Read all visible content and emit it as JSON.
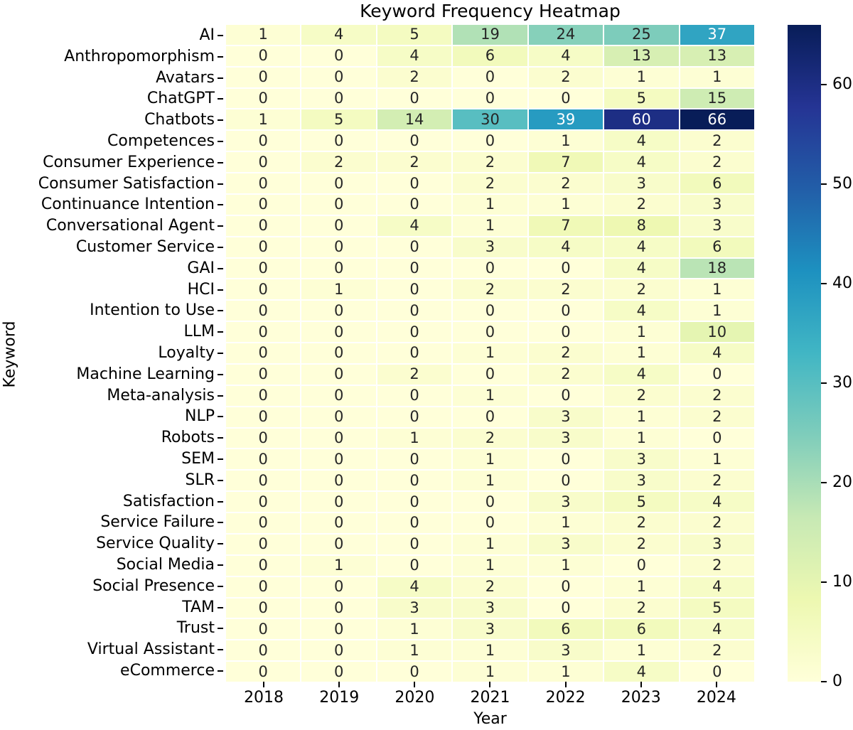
{
  "title": "Keyword Frequency Heatmap",
  "chart_data": {
    "type": "heatmap",
    "title": "Keyword Frequency Heatmap",
    "xlabel": "Year",
    "ylabel": "Keyword",
    "x": [
      "2018",
      "2019",
      "2020",
      "2021",
      "2022",
      "2023",
      "2024"
    ],
    "y": [
      "AI",
      "Anthropomorphism",
      "Avatars",
      "ChatGPT",
      "Chatbots",
      "Competences",
      "Consumer Experience",
      "Consumer Satisfaction",
      "Continuance Intention",
      "Conversational Agent",
      "Customer Service",
      "GAI",
      "HCI",
      "Intention to Use",
      "LLM",
      "Loyalty",
      "Machine Learning",
      "Meta-analysis",
      "NLP",
      "Robots",
      "SEM",
      "SLR",
      "Satisfaction",
      "Service Failure",
      "Service Quality",
      "Social Media",
      "Social Presence",
      "TAM",
      "Trust",
      "Virtual Assistant",
      "eCommerce"
    ],
    "values": [
      [
        1,
        4,
        5,
        19,
        24,
        25,
        37
      ],
      [
        0,
        0,
        4,
        6,
        4,
        13,
        13
      ],
      [
        0,
        0,
        2,
        0,
        2,
        1,
        1
      ],
      [
        0,
        0,
        0,
        0,
        0,
        5,
        15
      ],
      [
        1,
        5,
        14,
        30,
        39,
        60,
        66
      ],
      [
        0,
        0,
        0,
        0,
        1,
        4,
        2
      ],
      [
        0,
        2,
        2,
        2,
        7,
        4,
        2
      ],
      [
        0,
        0,
        0,
        2,
        2,
        3,
        6
      ],
      [
        0,
        0,
        0,
        1,
        1,
        2,
        3
      ],
      [
        0,
        0,
        4,
        1,
        7,
        8,
        3
      ],
      [
        0,
        0,
        0,
        3,
        4,
        4,
        6
      ],
      [
        0,
        0,
        0,
        0,
        0,
        4,
        18
      ],
      [
        0,
        1,
        0,
        2,
        2,
        2,
        1
      ],
      [
        0,
        0,
        0,
        0,
        0,
        4,
        1
      ],
      [
        0,
        0,
        0,
        0,
        0,
        1,
        10
      ],
      [
        0,
        0,
        0,
        1,
        2,
        1,
        4
      ],
      [
        0,
        0,
        2,
        0,
        2,
        4,
        0
      ],
      [
        0,
        0,
        0,
        1,
        0,
        2,
        2
      ],
      [
        0,
        0,
        0,
        0,
        3,
        1,
        2
      ],
      [
        0,
        0,
        1,
        2,
        3,
        1,
        0
      ],
      [
        0,
        0,
        0,
        1,
        0,
        3,
        1
      ],
      [
        0,
        0,
        0,
        1,
        0,
        3,
        2
      ],
      [
        0,
        0,
        0,
        0,
        3,
        5,
        4
      ],
      [
        0,
        0,
        0,
        0,
        1,
        2,
        2
      ],
      [
        0,
        0,
        0,
        1,
        3,
        2,
        3
      ],
      [
        0,
        1,
        0,
        1,
        1,
        0,
        2
      ],
      [
        0,
        0,
        4,
        2,
        0,
        1,
        4
      ],
      [
        0,
        0,
        3,
        3,
        0,
        2,
        5
      ],
      [
        0,
        0,
        1,
        3,
        6,
        6,
        4
      ],
      [
        0,
        0,
        1,
        1,
        3,
        1,
        2
      ],
      [
        0,
        0,
        0,
        1,
        1,
        4,
        0
      ]
    ],
    "vmin": 0,
    "vmax": 66,
    "colorbar_ticks": [
      0,
      10,
      20,
      30,
      40,
      50,
      60
    ],
    "colormap": "YlGnBu",
    "colormap_stops": [
      "#ffffd9",
      "#edf8b1",
      "#c7e9b4",
      "#7fcdbb",
      "#41b6c4",
      "#1d91c0",
      "#225ea8",
      "#253494",
      "#081d58"
    ],
    "annot_color_dark": "#262626",
    "annot_color_light": "#ffffff",
    "grid_line_color": "#ffffff",
    "legend_position": "right-colorbar",
    "grid": false
  }
}
